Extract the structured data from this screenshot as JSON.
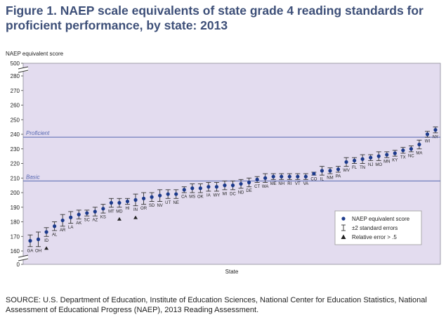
{
  "title": "Figure 1. NAEP scale equivalents of state grade 4 reading standards for proficient performance, by state: 2013",
  "source": "SOURCE: U.S. Department of Education, Institute of Education Sciences, National Center for Education Statistics, National Assessment of Educational Progress (NAEP), 2013 Reading Assessment.",
  "chart_data": {
    "type": "scatter",
    "ylabel": "NAEP equivalent score",
    "xlabel": "State",
    "ylim": [
      160,
      290
    ],
    "y_axis_break": true,
    "y_ticks": [
      0,
      160,
      170,
      180,
      190,
      200,
      210,
      220,
      230,
      240,
      250,
      260,
      270,
      280,
      500
    ],
    "grid": false,
    "reference_lines": [
      {
        "label": "Proficient",
        "value": 238
      },
      {
        "label": "Basic",
        "value": 208
      }
    ],
    "legend": {
      "position": "bottom-right",
      "items": [
        {
          "symbol": "dot",
          "label": "NAEP equivalent score"
        },
        {
          "symbol": "errorbar",
          "label": "±2 standard errors"
        },
        {
          "symbol": "triangle",
          "label": "Relative error > .5"
        }
      ]
    },
    "colors": {
      "point": "#1c3a8c",
      "plot_bg": "#e3dcef",
      "reference_line": "#5566b0",
      "text": "#3d4f78"
    },
    "states": [
      "GA",
      "OH",
      "ID",
      "AL",
      "AR",
      "LA",
      "AK",
      "SC",
      "AZ",
      "KS",
      "MT",
      "MD",
      "HI",
      "IN",
      "OR",
      "SD",
      "NV",
      "UT",
      "NE",
      "CA",
      "MS",
      "OK",
      "IA",
      "WY",
      "MI",
      "DC",
      "ND",
      "DE",
      "CT",
      "WA",
      "ME",
      "NH",
      "RI",
      "VT",
      "VA",
      "CO",
      "IL",
      "NM",
      "PA",
      "WV",
      "FL",
      "TN",
      "NJ",
      "MO",
      "MN",
      "KY",
      "TX",
      "NC",
      "MA",
      "WI",
      "NY"
    ],
    "values": [
      167,
      168,
      173,
      177,
      181,
      183,
      185,
      186,
      187,
      189,
      193,
      193,
      194,
      195,
      196,
      197,
      198,
      199,
      199,
      202,
      203,
      203,
      204,
      204,
      205,
      205,
      206,
      207,
      209,
      210,
      211,
      211,
      211,
      211,
      211,
      213,
      215,
      215,
      216,
      221,
      222,
      223,
      224,
      225,
      226,
      227,
      229,
      230,
      233,
      240,
      243
    ],
    "errors": [
      4,
      5,
      3,
      3,
      4,
      4,
      3,
      2,
      3,
      3,
      3,
      3,
      2,
      4,
      4,
      3,
      4,
      3,
      3,
      2,
      3,
      3,
      3,
      3,
      3,
      3,
      3,
      3,
      2,
      3,
      2,
      2,
      2,
      2,
      2,
      1,
      3,
      2,
      2,
      3,
      2,
      3,
      2,
      3,
      2,
      2,
      2,
      2,
      3,
      2,
      2
    ],
    "relative_error_flag": [
      "ID",
      "MD",
      "IN"
    ]
  }
}
